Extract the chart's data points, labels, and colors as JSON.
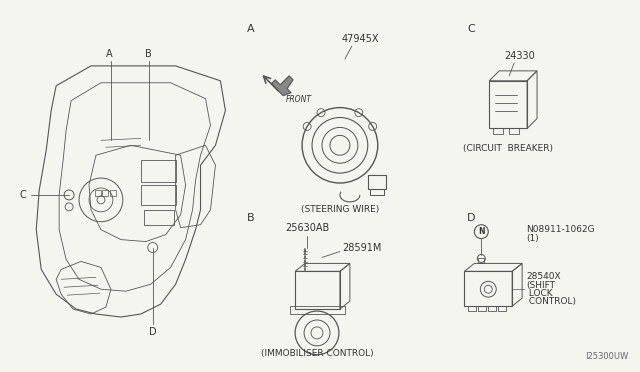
{
  "bg_color": "#f5f5f0",
  "line_color": "#555555",
  "text_color": "#333333",
  "fig_width": 6.4,
  "fig_height": 3.72,
  "watermark": "I25300UW",
  "label_A": "A",
  "label_B": "B",
  "label_C": "C",
  "label_D": "D",
  "part_A": "47945X",
  "desc_A": "(STEERING WIRE)",
  "part_B1": "25630AB",
  "part_B2": "28591M",
  "desc_B": "(IMMOBILISER CONTROL)",
  "part_C": "24330",
  "desc_C": "(CIRCUIT  BREAKER)",
  "part_D1": "N08911-1062G",
  "part_D1b": "(1)",
  "part_D2": "28540X",
  "desc_D1": "(SHIFT",
  "desc_D2": " LOCK",
  "desc_D3": " CONTROL)"
}
